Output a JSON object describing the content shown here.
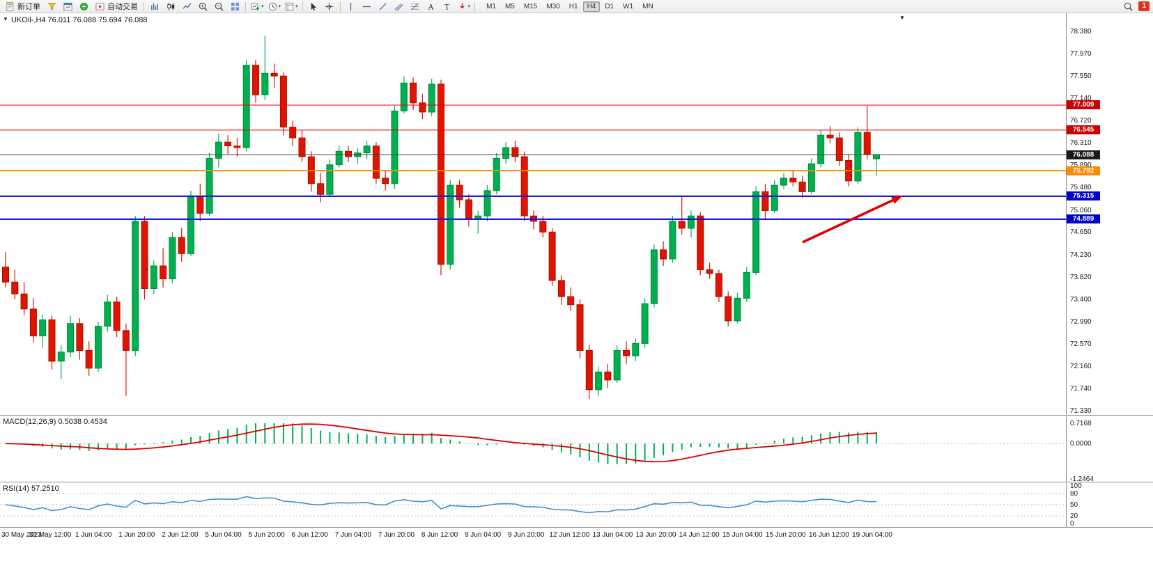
{
  "toolbar": {
    "new_order_label": "新订单",
    "autotrading_label": "自动交易",
    "timeframes": [
      "M1",
      "M5",
      "M15",
      "M30",
      "H1",
      "H4",
      "D1",
      "W1",
      "MN"
    ],
    "active_timeframe": "H4",
    "notification_count": "1"
  },
  "chart_header": {
    "collapse_icon": "▼",
    "text": "UKOil-,H4  76.011 76.088 75.694 76.088",
    "shift_marker": "▼"
  },
  "chart_data": {
    "type": "candlestick",
    "symbol": "UKOil-",
    "timeframe": "H4",
    "last_ohlc": {
      "open": 76.011,
      "high": 76.088,
      "low": 75.694,
      "close": 76.088
    },
    "y_range": [
      71.33,
      78.38
    ],
    "up_color": "#00b050",
    "up_border": "#008a36",
    "down_color": "#e01400",
    "down_border": "#a50f00",
    "y_ticks": [
      "78.380",
      "77.970",
      "77.550",
      "77.140",
      "76.720",
      "76.310",
      "75.890",
      "75.480",
      "75.060",
      "74.650",
      "74.230",
      "73.820",
      "73.400",
      "72.990",
      "72.570",
      "72.160",
      "71.740",
      "71.330"
    ],
    "x_labels": [
      "30 May 2023",
      "31 May 12:00",
      "1 Jun 04:00",
      "1 Jun 20:00",
      "2 Jun 12:00",
      "5 Jun 04:00",
      "5 Jun 20:00",
      "6 Jun 12:00",
      "7 Jun 04:00",
      "7 Jun 20:00",
      "8 Jun 12:00",
      "9 Jun 04:00",
      "9 Jun 20:00",
      "12 Jun 12:00",
      "13 Jun 04:00",
      "13 Jun 20:00",
      "14 Jun 12:00",
      "15 Jun 04:00",
      "15 Jun 20:00",
      "16 Jun 12:00",
      "19 Jun 04:00"
    ],
    "levels": [
      {
        "price": 77.009,
        "color": "#e80000",
        "badge_color": "#cc0000",
        "width": 1
      },
      {
        "price": 76.545,
        "color": "#e80000",
        "badge_color": "#cc0000",
        "width": 1
      },
      {
        "price": 76.088,
        "color": "#3c3c3c",
        "badge_color": "#1a1a1a",
        "width": 1,
        "role": "current-price"
      },
      {
        "price": 75.792,
        "color": "#ff8a00",
        "badge_color": "#ff8a00",
        "width": 2
      },
      {
        "price": 75.315,
        "color": "#0000e6",
        "badge_color": "#0000cc",
        "width": 2
      },
      {
        "price": 74.889,
        "color": "#0000e6",
        "badge_color": "#0000cc",
        "width": 2
      }
    ],
    "annotation_arrow": {
      "color": "#e00000",
      "from": [
        1152,
        329
      ],
      "to": [
        1296,
        262
      ]
    },
    "candles": [
      [
        74.0,
        74.28,
        73.62,
        73.72
      ],
      [
        73.72,
        73.95,
        73.4,
        73.5
      ],
      [
        73.5,
        73.72,
        73.1,
        73.22
      ],
      [
        73.22,
        73.42,
        72.6,
        72.72
      ],
      [
        72.72,
        73.12,
        72.5,
        73.02
      ],
      [
        73.02,
        73.1,
        72.1,
        72.25
      ],
      [
        72.25,
        72.55,
        71.92,
        72.42
      ],
      [
        72.42,
        73.1,
        72.32,
        72.95
      ],
      [
        72.95,
        73.05,
        72.28,
        72.45
      ],
      [
        72.45,
        72.62,
        71.98,
        72.12
      ],
      [
        72.12,
        72.98,
        72.05,
        72.9
      ],
      [
        72.9,
        73.48,
        72.8,
        73.35
      ],
      [
        73.35,
        73.45,
        72.7,
        72.82
      ],
      [
        72.82,
        72.95,
        71.6,
        72.45
      ],
      [
        72.45,
        74.95,
        72.35,
        74.85
      ],
      [
        74.85,
        74.95,
        73.4,
        73.6
      ],
      [
        73.6,
        74.12,
        73.5,
        74.02
      ],
      [
        74.02,
        74.35,
        73.62,
        73.78
      ],
      [
        73.78,
        74.65,
        73.7,
        74.55
      ],
      [
        74.55,
        74.72,
        74.1,
        74.25
      ],
      [
        74.25,
        75.42,
        74.2,
        75.32
      ],
      [
        75.32,
        75.55,
        74.85,
        75.0
      ],
      [
        75.0,
        76.12,
        74.95,
        76.02
      ],
      [
        76.02,
        76.48,
        75.85,
        76.32
      ],
      [
        76.32,
        76.45,
        76.1,
        76.25
      ],
      [
        76.25,
        76.4,
        76.05,
        76.22
      ],
      [
        76.22,
        77.85,
        76.15,
        77.75
      ],
      [
        77.75,
        77.85,
        77.05,
        77.2
      ],
      [
        77.2,
        78.3,
        77.1,
        77.6
      ],
      [
        77.6,
        77.78,
        77.32,
        77.55
      ],
      [
        77.55,
        77.62,
        76.45,
        76.6
      ],
      [
        76.6,
        76.72,
        76.25,
        76.4
      ],
      [
        76.4,
        76.55,
        75.95,
        76.05
      ],
      [
        76.05,
        76.15,
        75.4,
        75.55
      ],
      [
        75.55,
        75.75,
        75.2,
        75.35
      ],
      [
        75.35,
        76.0,
        75.3,
        75.9
      ],
      [
        75.9,
        76.25,
        75.85,
        76.15
      ],
      [
        76.15,
        76.25,
        75.95,
        76.05
      ],
      [
        76.05,
        76.22,
        75.92,
        76.12
      ],
      [
        76.12,
        76.35,
        76.0,
        76.25
      ],
      [
        76.25,
        76.32,
        75.55,
        75.65
      ],
      [
        75.65,
        75.8,
        75.42,
        75.55
      ],
      [
        75.55,
        77.0,
        75.45,
        76.9
      ],
      [
        76.9,
        77.55,
        76.85,
        77.42
      ],
      [
        77.42,
        77.52,
        76.92,
        77.05
      ],
      [
        77.05,
        77.22,
        76.75,
        76.88
      ],
      [
        76.88,
        77.5,
        76.8,
        77.4
      ],
      [
        77.4,
        77.48,
        73.85,
        74.05
      ],
      [
        74.05,
        75.62,
        73.95,
        75.52
      ],
      [
        75.52,
        75.62,
        75.1,
        75.25
      ],
      [
        75.25,
        75.35,
        74.75,
        74.9
      ],
      [
        74.9,
        75.05,
        74.62,
        74.95
      ],
      [
        74.95,
        75.52,
        74.85,
        75.42
      ],
      [
        75.42,
        76.12,
        75.35,
        76.02
      ],
      [
        76.02,
        76.32,
        75.92,
        76.22
      ],
      [
        76.22,
        76.35,
        75.95,
        76.05
      ],
      [
        76.05,
        76.15,
        74.85,
        74.95
      ],
      [
        74.95,
        75.05,
        74.7,
        74.85
      ],
      [
        74.85,
        74.95,
        74.55,
        74.65
      ],
      [
        74.65,
        74.72,
        73.65,
        73.75
      ],
      [
        73.75,
        73.85,
        73.3,
        73.45
      ],
      [
        73.45,
        73.62,
        73.18,
        73.3
      ],
      [
        73.3,
        73.4,
        72.3,
        72.45
      ],
      [
        72.45,
        72.55,
        71.55,
        71.72
      ],
      [
        71.72,
        72.15,
        71.6,
        72.05
      ],
      [
        72.05,
        72.2,
        71.75,
        71.9
      ],
      [
        71.9,
        72.55,
        71.85,
        72.45
      ],
      [
        72.45,
        72.62,
        72.2,
        72.35
      ],
      [
        72.35,
        72.68,
        72.25,
        72.58
      ],
      [
        72.58,
        73.42,
        72.5,
        73.32
      ],
      [
        73.32,
        74.42,
        73.25,
        74.32
      ],
      [
        74.32,
        74.48,
        74.02,
        74.15
      ],
      [
        74.15,
        74.95,
        74.08,
        74.85
      ],
      [
        74.85,
        75.3,
        74.6,
        74.72
      ],
      [
        74.72,
        75.05,
        74.55,
        74.95
      ],
      [
        74.95,
        75.02,
        73.85,
        73.95
      ],
      [
        73.95,
        74.08,
        73.78,
        73.88
      ],
      [
        73.88,
        73.95,
        73.35,
        73.45
      ],
      [
        73.45,
        73.55,
        72.9,
        73.0
      ],
      [
        73.0,
        73.52,
        72.95,
        73.42
      ],
      [
        73.42,
        74.0,
        73.35,
        73.9
      ],
      [
        73.9,
        75.5,
        73.85,
        75.4
      ],
      [
        75.4,
        75.55,
        74.9,
        75.05
      ],
      [
        75.05,
        75.62,
        75.0,
        75.52
      ],
      [
        75.52,
        75.75,
        75.45,
        75.65
      ],
      [
        75.65,
        75.8,
        75.5,
        75.58
      ],
      [
        75.58,
        75.7,
        75.28,
        75.4
      ],
      [
        75.4,
        76.02,
        75.35,
        75.92
      ],
      [
        75.92,
        76.55,
        75.85,
        76.45
      ],
      [
        76.45,
        76.62,
        76.3,
        76.4
      ],
      [
        76.4,
        76.5,
        75.88,
        75.98
      ],
      [
        75.98,
        76.1,
        75.5,
        75.6
      ],
      [
        75.6,
        76.6,
        75.55,
        76.5
      ],
      [
        76.5,
        77.0,
        76.0,
        76.1
      ],
      [
        76.011,
        76.088,
        75.694,
        76.088
      ]
    ],
    "indicators": [
      {
        "name": "MACD",
        "label": "MACD(12,26,9) 0.5038 0.4534",
        "params": "12,26,9",
        "values": [
          0.5038,
          0.4534
        ],
        "y_ticks": [
          "0.7168",
          "0.0000",
          "-1.2464"
        ],
        "range": [
          -1.2464,
          0.7168
        ],
        "hist_color": "#00b050",
        "signal_color": "#dd0000"
      },
      {
        "name": "RSI",
        "label": "RSI(14) 57.2510",
        "params": "14",
        "value": 57.251,
        "y_ticks": [
          "100",
          "80",
          "50",
          "20",
          "0"
        ],
        "levels": [
          80,
          50,
          20
        ],
        "range": [
          0,
          100
        ],
        "line_color": "#3f8fd2"
      }
    ]
  }
}
